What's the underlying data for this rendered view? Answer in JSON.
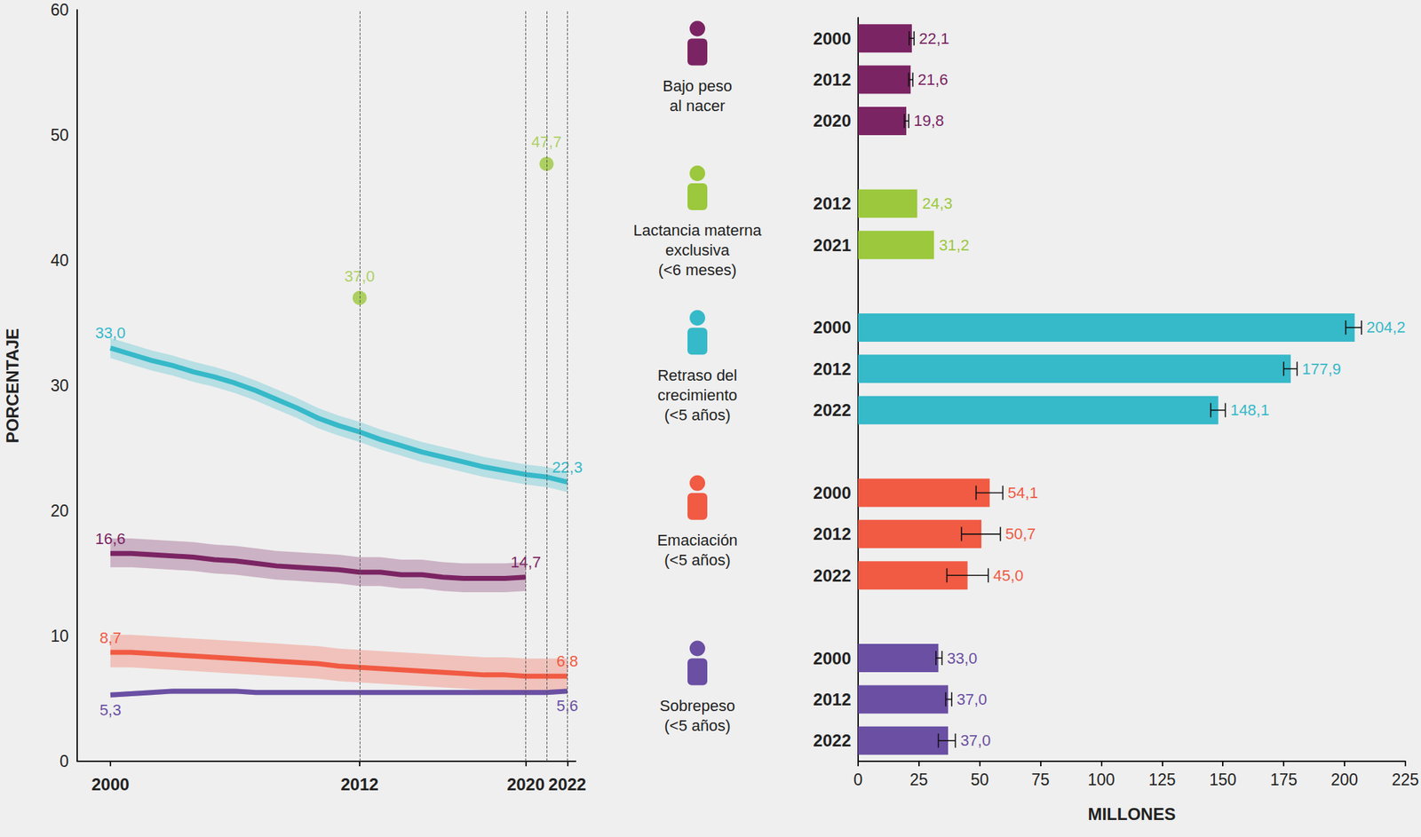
{
  "chart_data": [
    {
      "type": "line",
      "ylabel": "PORCENTAJE",
      "xlim": [
        1998.4,
        2022.4
      ],
      "xticks": [
        2000,
        2012,
        2020,
        2022
      ],
      "ylim": [
        0,
        60
      ],
      "yticks": [
        0,
        10,
        20,
        30,
        40,
        50,
        60
      ],
      "vlines": [
        2012,
        2020,
        2021,
        2022
      ],
      "grid": false,
      "data_labels": true,
      "x": [
        2000,
        2001,
        2002,
        2003,
        2004,
        2005,
        2006,
        2007,
        2008,
        2009,
        2010,
        2011,
        2012,
        2013,
        2014,
        2015,
        2016,
        2017,
        2018,
        2019,
        2020,
        2021,
        2022
      ],
      "series": [
        {
          "type": "line",
          "color": "#36b9c9",
          "values": [
            33.0,
            32.5,
            32.0,
            31.6,
            31.1,
            30.7,
            30.2,
            29.6,
            28.9,
            28.2,
            27.4,
            26.8,
            26.3,
            25.7,
            25.2,
            24.7,
            24.3,
            23.9,
            23.5,
            23.2,
            22.9,
            22.7,
            22.3
          ],
          "value_labels": [
            "33,0",
            null,
            null,
            null,
            null,
            null,
            null,
            null,
            null,
            null,
            null,
            null,
            null,
            null,
            null,
            null,
            null,
            null,
            null,
            null,
            null,
            null,
            "22,3"
          ],
          "lower": [
            32.2,
            31.7,
            31.2,
            30.8,
            30.3,
            29.9,
            29.4,
            28.8,
            28.1,
            27.4,
            26.6,
            26.0,
            25.5,
            24.9,
            24.4,
            23.9,
            23.5,
            23.1,
            22.7,
            22.4,
            22.1,
            21.9,
            21.5
          ],
          "upper": [
            33.8,
            33.3,
            32.8,
            32.4,
            31.9,
            31.5,
            31.0,
            30.4,
            29.7,
            29.0,
            28.2,
            27.6,
            27.1,
            26.5,
            26.0,
            25.5,
            25.1,
            24.7,
            24.3,
            24.0,
            23.7,
            23.5,
            23.1
          ]
        },
        {
          "type": "line",
          "color": "#7b2463",
          "values": [
            16.6,
            16.6,
            16.5,
            16.4,
            16.3,
            16.1,
            16.0,
            15.8,
            15.6,
            15.5,
            15.4,
            15.3,
            15.1,
            15.1,
            14.9,
            14.9,
            14.7,
            14.6,
            14.6,
            14.6,
            14.7,
            null,
            null
          ],
          "value_labels": [
            "16,6",
            null,
            null,
            null,
            null,
            null,
            null,
            null,
            null,
            null,
            null,
            null,
            null,
            null,
            null,
            null,
            null,
            null,
            null,
            null,
            "14,7",
            null,
            null
          ],
          "lower": [
            15.5,
            15.5,
            15.4,
            15.3,
            15.2,
            15.0,
            14.9,
            14.7,
            14.5,
            14.4,
            14.3,
            14.2,
            14.0,
            14.0,
            13.8,
            13.8,
            13.6,
            13.5,
            13.5,
            13.5,
            13.6,
            null,
            null
          ],
          "upper": [
            17.8,
            17.8,
            17.7,
            17.6,
            17.5,
            17.3,
            17.2,
            17.0,
            16.8,
            16.7,
            16.6,
            16.5,
            16.3,
            16.3,
            16.1,
            16.1,
            15.9,
            15.8,
            15.8,
            15.8,
            15.9,
            null,
            null
          ]
        },
        {
          "type": "line",
          "color": "#f15a43",
          "values": [
            8.7,
            8.7,
            8.6,
            8.5,
            8.4,
            8.3,
            8.2,
            8.1,
            8.0,
            7.9,
            7.8,
            7.6,
            7.5,
            7.4,
            7.3,
            7.2,
            7.1,
            7.0,
            6.9,
            6.9,
            6.8,
            6.8,
            6.8
          ],
          "value_labels": [
            "8,7",
            null,
            null,
            null,
            null,
            null,
            null,
            null,
            null,
            null,
            null,
            null,
            null,
            null,
            null,
            null,
            null,
            null,
            null,
            null,
            null,
            null,
            "6,8"
          ],
          "lower": [
            7.5,
            7.5,
            7.4,
            7.3,
            7.2,
            7.1,
            7.0,
            6.9,
            6.8,
            6.7,
            6.6,
            6.4,
            6.3,
            6.2,
            6.1,
            6.0,
            5.9,
            5.8,
            5.7,
            5.7,
            5.6,
            5.6,
            5.6
          ],
          "upper": [
            10.1,
            10.1,
            10.0,
            9.9,
            9.8,
            9.7,
            9.6,
            9.5,
            9.4,
            9.3,
            9.2,
            9.0,
            8.9,
            8.8,
            8.7,
            8.6,
            8.5,
            8.4,
            8.3,
            8.3,
            8.2,
            8.2,
            8.2
          ]
        },
        {
          "type": "line",
          "color": "#6a4fa3",
          "values": [
            5.3,
            5.4,
            5.5,
            5.6,
            5.6,
            5.6,
            5.6,
            5.5,
            5.5,
            5.5,
            5.5,
            5.5,
            5.5,
            5.5,
            5.5,
            5.5,
            5.5,
            5.5,
            5.5,
            5.5,
            5.5,
            5.5,
            5.6
          ],
          "value_labels": [
            "5,3",
            null,
            null,
            null,
            null,
            null,
            null,
            null,
            null,
            null,
            null,
            null,
            null,
            null,
            null,
            null,
            null,
            null,
            null,
            null,
            null,
            null,
            "5,6"
          ],
          "lower": [
            5.1,
            5.2,
            5.3,
            5.4,
            5.4,
            5.4,
            5.4,
            5.3,
            5.3,
            5.3,
            5.3,
            5.3,
            5.3,
            5.3,
            5.3,
            5.3,
            5.3,
            5.3,
            5.3,
            5.3,
            5.3,
            5.3,
            5.4
          ],
          "upper": [
            5.5,
            5.6,
            5.7,
            5.8,
            5.8,
            5.8,
            5.8,
            5.7,
            5.7,
            5.7,
            5.7,
            5.7,
            5.7,
            5.7,
            5.7,
            5.7,
            5.7,
            5.7,
            5.7,
            5.7,
            5.7,
            5.7,
            5.8
          ]
        },
        {
          "type": "scatter",
          "marker": "circle",
          "color": "#9bc83c",
          "x": [
            2012,
            2021
          ],
          "values": [
            37.0,
            47.7
          ],
          "value_labels": [
            "37,0",
            "47,7"
          ]
        }
      ]
    },
    {
      "type": "bar",
      "orientation": "horizontal",
      "xlabel": "MILLONES",
      "xlim": [
        0,
        225
      ],
      "xticks": [
        0,
        25,
        50,
        75,
        100,
        125,
        150,
        175,
        200,
        225
      ],
      "grid": false,
      "data_labels": true,
      "group_labels": [
        "Bajo peso\nal nacer",
        "Lactancia materna\nexclusiva\n(<6 meses)",
        "Retraso del\ncrecimiento\n(<5 años)",
        "Emaciación\n(<5 años)",
        "Sobrepeso\n(<5 años)"
      ],
      "categories": [
        "2000",
        "2012",
        "2020",
        null,
        "2012",
        "2021",
        null,
        "2000",
        "2012",
        "2022",
        null,
        "2000",
        "2012",
        "2022",
        null,
        "2000",
        "2012",
        "2022"
      ],
      "values": [
        22.1,
        21.6,
        19.8,
        null,
        24.3,
        31.2,
        null,
        204.2,
        177.9,
        148.1,
        null,
        54.1,
        50.7,
        45.0,
        null,
        33.0,
        37.0,
        37.0
      ],
      "value_labels": [
        "22,1",
        "21,6",
        "19,8",
        null,
        "24,3",
        "31,2",
        null,
        "204,2",
        "177,9",
        "148,1",
        null,
        "54,1",
        "50,7",
        "45,0",
        null,
        "33,0",
        "37,0",
        "37,0"
      ],
      "error_low": [
        21.0,
        20.8,
        19.0,
        null,
        null,
        null,
        null,
        200.5,
        175.0,
        145.0,
        null,
        48.5,
        42.5,
        36.5,
        null,
        32.0,
        36.0,
        33.0
      ],
      "error_high": [
        23.0,
        22.5,
        20.8,
        null,
        null,
        null,
        null,
        207.0,
        180.5,
        151.0,
        null,
        59.5,
        58.5,
        53.5,
        null,
        34.5,
        38.5,
        40.0
      ],
      "colors": [
        "#7b2463",
        "#7b2463",
        "#7b2463",
        null,
        "#9bc83c",
        "#9bc83c",
        null,
        "#36b9c9",
        "#36b9c9",
        "#36b9c9",
        null,
        "#f15a43",
        "#f15a43",
        "#f15a43",
        null,
        "#6a4fa3",
        "#6a4fa3",
        "#6a4fa3"
      ]
    }
  ]
}
